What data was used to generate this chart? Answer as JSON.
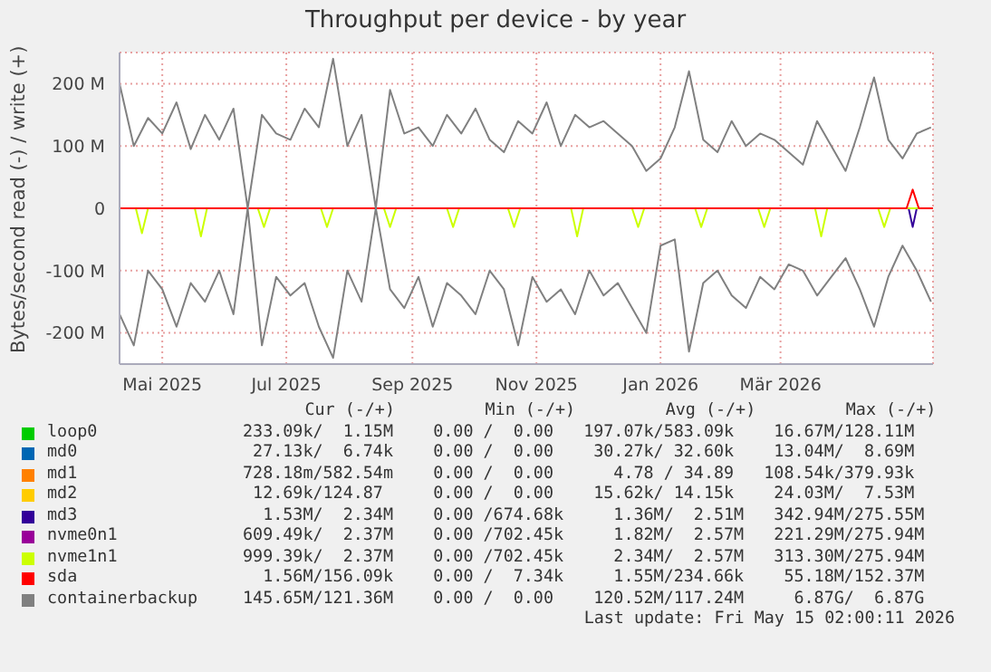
{
  "chart_data": {
    "type": "line",
    "title": "Throughput per device - by year",
    "ylabel": "Bytes/second read (-) / write (+)",
    "xlim": [
      "2025-04-10",
      "2026-05-15"
    ],
    "xticks": [
      {
        "value": "2025-05-01",
        "label": "Mai 2025"
      },
      {
        "value": "2025-07-01",
        "label": "Jul 2025"
      },
      {
        "value": "2025-09-01",
        "label": "Sep 2025"
      },
      {
        "value": "2025-11-01",
        "label": "Nov 2025"
      },
      {
        "value": "2026-01-01",
        "label": "Jan 2026"
      },
      {
        "value": "2026-03-01",
        "label": "Mär 2026"
      }
    ],
    "ylim": [
      -250,
      250
    ],
    "yticks": [
      {
        "value": -200,
        "label": "-200 M"
      },
      {
        "value": -100,
        "label": "-100 M"
      },
      0,
      {
        "value": 100,
        "label": "100 M"
      },
      {
        "value": 200,
        "label": "200 M"
      }
    ],
    "grid": true,
    "legend": "bottom",
    "marker": "none",
    "line_style": "solid",
    "series": [
      {
        "name": "loop0",
        "color": "#00cc00"
      },
      {
        "name": "md0",
        "color": "#0066b3"
      },
      {
        "name": "md1",
        "color": "#ff8000"
      },
      {
        "name": "md2",
        "color": "#ffcc00"
      },
      {
        "name": "md3",
        "color": "#330099",
        "x": [
          "2026-05-03",
          "2026-05-05",
          "2026-05-07"
        ],
        "values": [
          0,
          -30,
          0
        ]
      },
      {
        "name": "nvme0n1",
        "color": "#990099"
      },
      {
        "name": "nvme1n1",
        "color": "#ccff00",
        "x": [
          "2025-04-10",
          "2025-04-18",
          "2025-04-21",
          "2025-04-24",
          "2025-05-17",
          "2025-05-20",
          "2025-05-23",
          "2025-06-17",
          "2025-06-20",
          "2025-06-23",
          "2025-07-18",
          "2025-07-21",
          "2025-07-24",
          "2025-08-18",
          "2025-08-21",
          "2025-08-24",
          "2025-09-18",
          "2025-09-21",
          "2025-09-24",
          "2025-10-18",
          "2025-10-21",
          "2025-10-24",
          "2025-11-18",
          "2025-11-21",
          "2025-11-24",
          "2025-12-18",
          "2025-12-21",
          "2025-12-24",
          "2026-01-18",
          "2026-01-21",
          "2026-01-24",
          "2026-02-18",
          "2026-02-21",
          "2026-02-24",
          "2026-03-18",
          "2026-03-21",
          "2026-03-24",
          "2026-04-18",
          "2026-04-21",
          "2026-04-24",
          "2026-05-15"
        ],
        "values": [
          0,
          0,
          -40,
          0,
          0,
          -45,
          0,
          0,
          -30,
          0,
          0,
          -30,
          0,
          0,
          -30,
          0,
          0,
          -30,
          0,
          0,
          -30,
          0,
          0,
          -45,
          0,
          0,
          -30,
          0,
          0,
          -30,
          0,
          0,
          -30,
          0,
          0,
          -45,
          0,
          0,
          -30,
          0,
          0
        ]
      },
      {
        "name": "sda",
        "color": "#ff0000",
        "x": [
          "2025-04-10",
          "2026-05-02",
          "2026-05-05",
          "2026-05-08",
          "2026-05-15"
        ],
        "values": [
          0,
          0,
          30,
          0,
          0
        ]
      },
      {
        "name": "containerbackup",
        "color": "#808080",
        "x": [
          "2025-04-10",
          "2025-04-17",
          "2025-04-24",
          "2025-05-01",
          "2025-05-08",
          "2025-05-15",
          "2025-05-22",
          "2025-05-29",
          "2025-06-05",
          "2025-06-12",
          "2025-06-19",
          "2025-06-26",
          "2025-07-03",
          "2025-07-10",
          "2025-07-17",
          "2025-07-24",
          "2025-07-31",
          "2025-08-07",
          "2025-08-14",
          "2025-08-21",
          "2025-08-28",
          "2025-09-04",
          "2025-09-11",
          "2025-09-18",
          "2025-09-25",
          "2025-10-02",
          "2025-10-09",
          "2025-10-16",
          "2025-10-23",
          "2025-10-30",
          "2025-11-06",
          "2025-11-13",
          "2025-11-20",
          "2025-11-27",
          "2025-12-04",
          "2025-12-11",
          "2025-12-18",
          "2025-12-25",
          "2026-01-01",
          "2026-01-08",
          "2026-01-15",
          "2026-01-22",
          "2026-01-29",
          "2026-02-05",
          "2026-02-12",
          "2026-02-19",
          "2026-02-26",
          "2026-03-05",
          "2026-03-12",
          "2026-03-19",
          "2026-03-26",
          "2026-04-02",
          "2026-04-09",
          "2026-04-16",
          "2026-04-23",
          "2026-04-30",
          "2026-05-07",
          "2026-05-14"
        ],
        "values": [
          200,
          100,
          145,
          120,
          170,
          95,
          150,
          110,
          160,
          0,
          150,
          120,
          110,
          160,
          130,
          240,
          100,
          150,
          0,
          190,
          120,
          130,
          100,
          150,
          120,
          160,
          110,
          90,
          140,
          120,
          170,
          100,
          150,
          130,
          140,
          120,
          100,
          60,
          80,
          130,
          220,
          110,
          90,
          140,
          100,
          120,
          110,
          90,
          70,
          140,
          100,
          60,
          130,
          210,
          110,
          80,
          120,
          130
        ]
      },
      {
        "color": "#808080",
        "x": [
          "2025-04-10",
          "2025-04-17",
          "2025-04-24",
          "2025-05-01",
          "2025-05-08",
          "2025-05-15",
          "2025-05-22",
          "2025-05-29",
          "2025-06-05",
          "2025-06-12",
          "2025-06-19",
          "2025-06-26",
          "2025-07-03",
          "2025-07-10",
          "2025-07-17",
          "2025-07-24",
          "2025-07-31",
          "2025-08-07",
          "2025-08-14",
          "2025-08-21",
          "2025-08-28",
          "2025-09-04",
          "2025-09-11",
          "2025-09-18",
          "2025-09-25",
          "2025-10-02",
          "2025-10-09",
          "2025-10-16",
          "2025-10-23",
          "2025-10-30",
          "2025-11-06",
          "2025-11-13",
          "2025-11-20",
          "2025-11-27",
          "2025-12-04",
          "2025-12-11",
          "2025-12-18",
          "2025-12-25",
          "2026-01-01",
          "2026-01-08",
          "2026-01-15",
          "2026-01-22",
          "2026-01-29",
          "2026-02-05",
          "2026-02-12",
          "2026-02-19",
          "2026-02-26",
          "2026-03-05",
          "2026-03-12",
          "2026-03-19",
          "2026-03-26",
          "2026-04-02",
          "2026-04-09",
          "2026-04-16",
          "2026-04-23",
          "2026-04-30",
          "2026-05-07",
          "2026-05-14"
        ],
        "values": [
          -170,
          -220,
          -100,
          -130,
          -190,
          -120,
          -150,
          -100,
          -170,
          0,
          -220,
          -110,
          -140,
          -120,
          -190,
          -240,
          -100,
          -150,
          0,
          -130,
          -160,
          -110,
          -190,
          -120,
          -140,
          -170,
          -100,
          -130,
          -220,
          -110,
          -150,
          -130,
          -170,
          -100,
          -140,
          -120,
          -160,
          -200,
          -60,
          -50,
          -230,
          -120,
          -100,
          -140,
          -160,
          -110,
          -130,
          -90,
          -100,
          -140,
          -110,
          -80,
          -130,
          -190,
          -110,
          -60,
          -100,
          -150
        ]
      }
    ],
    "annotations": [
      "      Cur (-/+)         Min (-/+)         Avg (-/+)         Max (-/+)",
      "233.09k/  1.15M    0.00 /  0.00   197.07k/583.09k    16.67M/128.11M",
      " 27.13k/  6.74k    0.00 /  0.00    30.27k/ 32.60k    13.04M/  8.69M",
      "728.18m/582.54m    0.00 /  0.00      4.78 / 34.89   108.54k/379.93k",
      " 12.69k/124.87     0.00 /  0.00    15.62k/ 14.15k    24.03M/  7.53M",
      "  1.53M/  2.34M    0.00 /674.68k     1.36M/  2.51M   342.94M/275.55M",
      "609.49k/  2.37M    0.00 /702.45k     1.82M/  2.57M   221.29M/275.94M",
      "999.39k/  2.37M    0.00 /702.45k     2.34M/  2.57M   313.30M/275.94M",
      "  1.56M/156.09k    0.00 /  7.34k     1.55M/234.66k    55.18M/152.37M",
      "145.65M/121.36M    0.00 /  0.00    120.52M/117.24M     6.87G/  6.87G",
      "Last update: Fri May 15 02:00:11 2026"
    ]
  }
}
